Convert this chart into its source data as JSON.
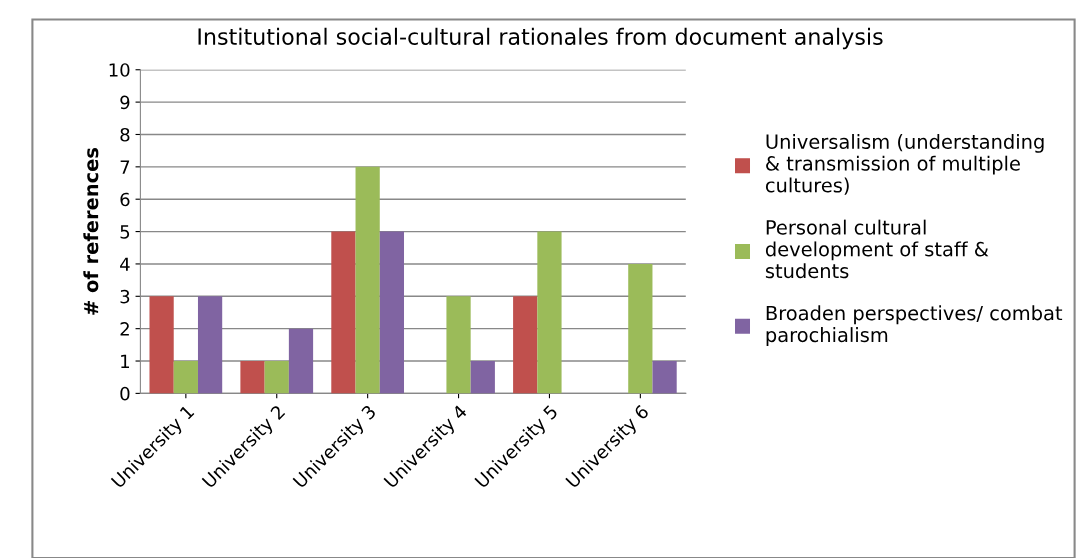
{
  "chart_data": {
    "type": "bar",
    "title": "Institutional social-cultural rationales from document analysis",
    "ylabel": "# of references",
    "categories": [
      "University 1",
      "University 2",
      "University 3",
      "University 4",
      "University 5",
      "University 6"
    ],
    "series": [
      {
        "name": "Universalism (understanding & transmission of multiple cultures)",
        "color": "#c0504d",
        "values": [
          3,
          1,
          5,
          0,
          3,
          0
        ]
      },
      {
        "name": "Personal cultural development of staff & students",
        "color": "#9bbb59",
        "values": [
          1,
          1,
          7,
          3,
          5,
          4
        ]
      },
      {
        "name": "Broaden perspectives/ combat parochialism",
        "color": "#8064a2",
        "values": [
          3,
          2,
          5,
          1,
          0,
          1
        ]
      }
    ],
    "ylim": [
      0,
      10
    ],
    "yticks": [
      0,
      1,
      2,
      3,
      4,
      5,
      6,
      7,
      8,
      9,
      10
    ],
    "grid": "y",
    "legend": "right"
  }
}
